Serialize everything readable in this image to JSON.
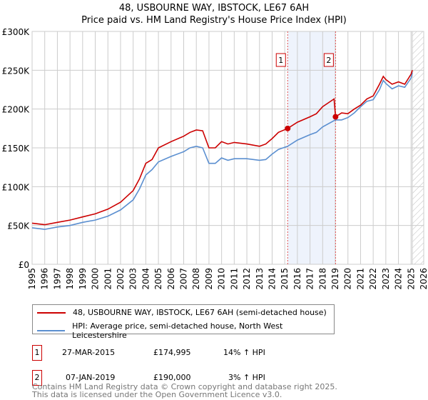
{
  "chart_data": {
    "type": "line",
    "title": "48, USBOURNE WAY, IBSTOCK, LE67 6AH",
    "subtitle": "Price paid vs. HM Land Registry's House Price Index (HPI)",
    "xlim": [
      1995,
      2026
    ],
    "ylim": [
      0,
      300000
    ],
    "y_ticks": [
      {
        "v": 0,
        "label": "£0"
      },
      {
        "v": 50000,
        "label": "£50K"
      },
      {
        "v": 100000,
        "label": "£100K"
      },
      {
        "v": 150000,
        "label": "£150K"
      },
      {
        "v": 200000,
        "label": "£200K"
      },
      {
        "v": 250000,
        "label": "£250K"
      },
      {
        "v": 300000,
        "label": "£300K"
      }
    ],
    "x_ticks": [
      "1995",
      "1996",
      "1997",
      "1998",
      "1999",
      "2000",
      "2001",
      "2002",
      "2003",
      "2004",
      "2005",
      "2006",
      "2007",
      "2008",
      "2009",
      "2010",
      "2011",
      "2012",
      "2013",
      "2014",
      "2015",
      "2016",
      "2017",
      "2018",
      "2019",
      "2020",
      "2021",
      "2022",
      "2023",
      "2024",
      "2025",
      "2026"
    ],
    "grid": true,
    "shaded_range": [
      2015.23,
      2019.02
    ],
    "forecast_hatch_from": 2025.1,
    "series": [
      {
        "name": "48, USBOURNE WAY, IBSTOCK, LE67 6AH (semi-detached house)",
        "color": "#cc0000",
        "x": [
          1995,
          1996,
          1997,
          1998,
          1999,
          2000,
          2001,
          2002,
          2003,
          2003.5,
          2004,
          2004.5,
          2005,
          2006,
          2007,
          2007.5,
          2008,
          2008.5,
          2009,
          2009.5,
          2010,
          2010.5,
          2011,
          2012,
          2013,
          2013.5,
          2014,
          2014.5,
          2015.23,
          2016,
          2017,
          2017.5,
          2018,
          2018.9,
          2019.02,
          2019.5,
          2020,
          2020.5,
          2021,
          2021.5,
          2022,
          2022.5,
          2022.8,
          2023,
          2023.5,
          2024,
          2024.5,
          2025,
          2025.1
        ],
        "y": [
          53000,
          51000,
          54000,
          57000,
          61000,
          65000,
          71000,
          80000,
          95000,
          110000,
          130000,
          135000,
          150000,
          158000,
          165000,
          170000,
          173000,
          172000,
          150000,
          150000,
          158000,
          155000,
          157000,
          155000,
          152000,
          155000,
          162000,
          170000,
          174995,
          183000,
          190000,
          194000,
          203000,
          213000,
          190000,
          195000,
          194000,
          200000,
          205000,
          213000,
          217000,
          232000,
          242000,
          238000,
          232000,
          235000,
          232000,
          245000,
          250000
        ]
      },
      {
        "name": "HPI: Average price, semi-detached house, North West Leicestershire",
        "color": "#5b8fd0",
        "x": [
          1995,
          1996,
          1997,
          1998,
          1999,
          2000,
          2001,
          2002,
          2003,
          2003.5,
          2004,
          2004.5,
          2005,
          2006,
          2007,
          2007.5,
          2008,
          2008.5,
          2009,
          2009.5,
          2010,
          2010.5,
          2011,
          2012,
          2013,
          2013.5,
          2014,
          2014.5,
          2015.23,
          2016,
          2017,
          2017.5,
          2018,
          2019,
          2019.5,
          2020,
          2020.5,
          2021,
          2021.5,
          2022,
          2022.5,
          2022.8,
          2023,
          2023.5,
          2024,
          2024.5,
          2025,
          2025.1
        ],
        "y": [
          47000,
          45000,
          48000,
          50000,
          54000,
          57000,
          62000,
          70000,
          83000,
          97000,
          115000,
          122000,
          132000,
          139000,
          145000,
          150000,
          152000,
          150000,
          130000,
          130000,
          137000,
          134000,
          136000,
          136000,
          134000,
          135000,
          142000,
          148000,
          152000,
          160000,
          167000,
          170000,
          177000,
          186000,
          186000,
          189000,
          195000,
          203000,
          210000,
          212000,
          225000,
          237000,
          233000,
          226000,
          230000,
          228000,
          240000,
          247000
        ]
      }
    ],
    "sales": [
      {
        "n": "1",
        "date": "27-MAR-2015",
        "x": 2015.23,
        "price": "£174,995",
        "value": 174995,
        "hpi": "14% ↑ HPI"
      },
      {
        "n": "2",
        "date": "07-JAN-2019",
        "x": 2019.02,
        "price": "£190,000",
        "value": 190000,
        "hpi": "3% ↑ HPI"
      }
    ]
  },
  "footer": {
    "line1": "Contains HM Land Registry data © Crown copyright and database right 2025.",
    "line2": "This data is licensed under the Open Government Licence v3.0."
  }
}
